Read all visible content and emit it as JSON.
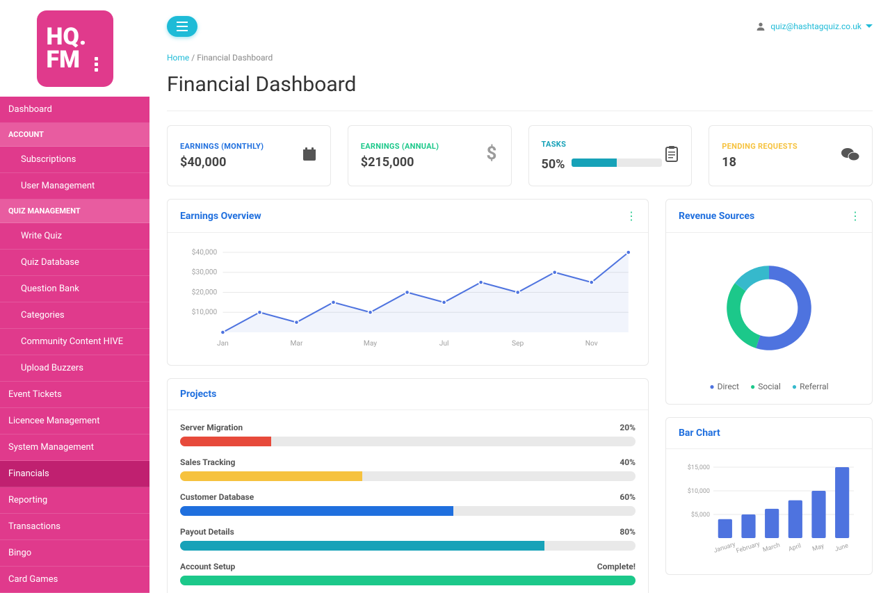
{
  "logo": {
    "line1": "HQ.",
    "line2": "FM"
  },
  "user": {
    "email": "quiz@hashtagquiz.co.uk"
  },
  "breadcrumb": {
    "home": "Home",
    "sep": "/",
    "current": "Financial Dashboard"
  },
  "page_title": "Financial Dashboard",
  "sidebar": {
    "items": [
      {
        "type": "item",
        "label": "Dashboard"
      },
      {
        "type": "section",
        "label": "ACCOUNT"
      },
      {
        "type": "sub",
        "label": "Subscriptions"
      },
      {
        "type": "sub",
        "label": "User Management"
      },
      {
        "type": "section",
        "label": "QUIZ MANAGEMENT"
      },
      {
        "type": "sub",
        "label": "Write Quiz"
      },
      {
        "type": "sub",
        "label": "Quiz Database"
      },
      {
        "type": "sub",
        "label": "Question Bank"
      },
      {
        "type": "sub",
        "label": "Categories"
      },
      {
        "type": "sub",
        "label": "Community Content HIVE"
      },
      {
        "type": "sub",
        "label": "Upload Buzzers"
      },
      {
        "type": "item",
        "label": "Event Tickets"
      },
      {
        "type": "item",
        "label": "Licencee Management"
      },
      {
        "type": "item",
        "label": "System Management"
      },
      {
        "type": "item",
        "label": "Financials",
        "active": true
      },
      {
        "type": "item",
        "label": "Reporting"
      },
      {
        "type": "item",
        "label": "Transactions"
      },
      {
        "type": "item",
        "label": "Bingo"
      },
      {
        "type": "item",
        "label": "Card Games"
      }
    ]
  },
  "stat_cards": [
    {
      "label": "EARNINGS (MONTHLY)",
      "value": "$40,000",
      "color": "#1f6fde",
      "icon": "calendar"
    },
    {
      "label": "EARNINGS (ANNUAL)",
      "value": "$215,000",
      "color": "#1cc88a",
      "icon": "dollar"
    },
    {
      "label": "TASKS",
      "value": "50%",
      "color": "#17a2b8",
      "icon": "clipboard",
      "progress": 50
    },
    {
      "label": "PENDING REQUESTS",
      "value": "18",
      "color": "#f6c23e",
      "icon": "chat"
    }
  ],
  "earnings_chart": {
    "title": "Earnings Overview",
    "type": "line",
    "x_labels": [
      "Jan",
      "Mar",
      "May",
      "Jul",
      "Sep",
      "Nov"
    ],
    "y_ticks": [
      "$10,000",
      "$20,000",
      "$30,000",
      "$40,000"
    ],
    "y_values": [
      10000,
      20000,
      30000,
      40000
    ],
    "series": [
      0,
      10000,
      5000,
      15000,
      10000,
      20000,
      15000,
      25000,
      20000,
      30000,
      25000,
      40000
    ],
    "line_color": "#4e73df",
    "fill_color": "rgba(78,115,223,0.08)",
    "grid_color": "#e8e8e8",
    "label_color": "#a0a0a0",
    "label_fontsize": 10,
    "marker_radius": 3,
    "ylim": [
      0,
      40000
    ]
  },
  "revenue_chart": {
    "title": "Revenue Sources",
    "type": "donut",
    "slices": [
      {
        "label": "Direct",
        "value": 55,
        "color": "#4e73df"
      },
      {
        "label": "Social",
        "value": 30,
        "color": "#1cc88a"
      },
      {
        "label": "Referral",
        "value": 15,
        "color": "#36b9cc"
      }
    ],
    "inner_radius_ratio": 0.68,
    "background_color": "#ffffff"
  },
  "projects": {
    "title": "Projects",
    "items": [
      {
        "name": "Server Migration",
        "pct_label": "20%",
        "pct": 20,
        "color": "#e74a3b"
      },
      {
        "name": "Sales Tracking",
        "pct_label": "40%",
        "pct": 40,
        "color": "#f6c23e"
      },
      {
        "name": "Customer Database",
        "pct_label": "60%",
        "pct": 60,
        "color": "#1f6fde"
      },
      {
        "name": "Payout Details",
        "pct_label": "80%",
        "pct": 80,
        "color": "#17a2b8"
      },
      {
        "name": "Account Setup",
        "pct_label": "Complete!",
        "pct": 100,
        "color": "#1cc88a"
      }
    ]
  },
  "bar_chart": {
    "title": "Bar Chart",
    "type": "bar",
    "categories": [
      "January",
      "February",
      "March",
      "April",
      "May",
      "June"
    ],
    "values": [
      4000,
      5000,
      6200,
      8000,
      10000,
      15000
    ],
    "y_ticks": [
      "$5,000",
      "$10,000",
      "$15,000"
    ],
    "y_values": [
      5000,
      10000,
      15000
    ],
    "bar_color": "#4e73df",
    "grid_color": "#e8e8e8",
    "label_color": "#a0a0a0",
    "label_fontsize": 9,
    "ylim": [
      0,
      15000
    ],
    "bar_width_ratio": 0.6
  }
}
